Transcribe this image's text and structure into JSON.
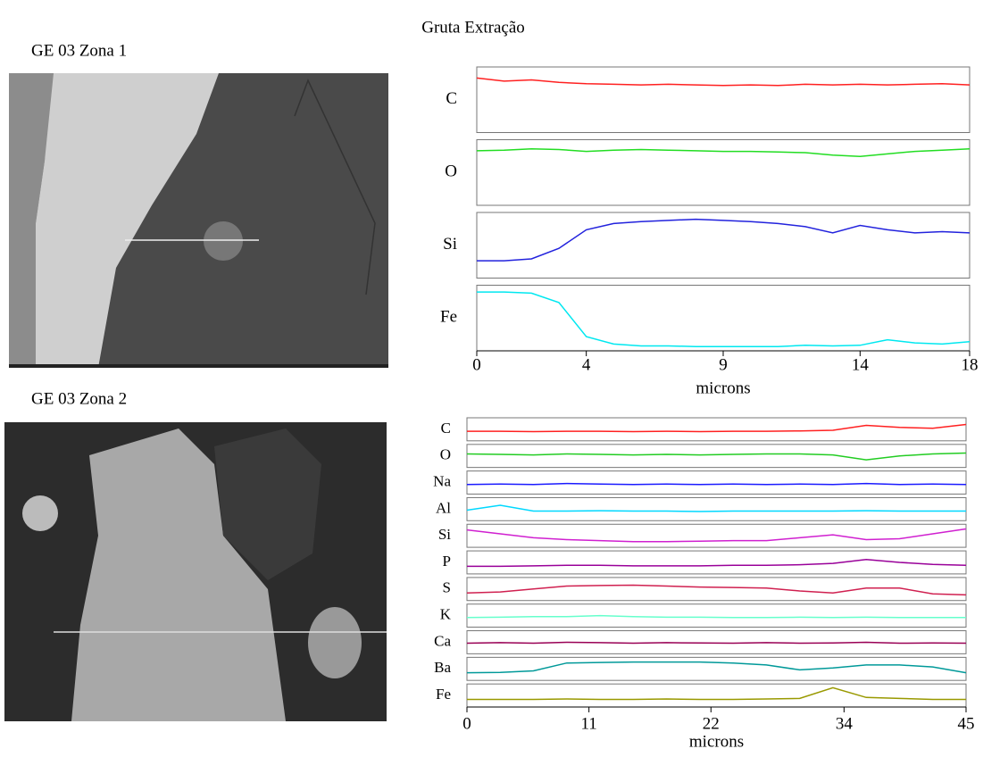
{
  "title": "Gruta Extração",
  "panels": [
    "GE 03 Zona 1",
    "GE  03 Zona 2"
  ],
  "chart_data": [
    {
      "type": "line",
      "xlabel": "microns",
      "x": [
        0,
        1,
        2,
        3,
        4,
        5,
        6,
        7,
        8,
        9,
        10,
        11,
        12,
        13,
        14,
        15,
        16,
        17,
        18
      ],
      "xlim": [
        0,
        18
      ],
      "xticks": [
        0,
        4,
        9,
        14,
        18
      ],
      "ylim": [
        0,
        100
      ],
      "series": [
        {
          "name": "C",
          "color": "#ff2020",
          "values": [
            85,
            80,
            82,
            78,
            76,
            75,
            74,
            75,
            74,
            73,
            74,
            73,
            75,
            74,
            75,
            74,
            75,
            76,
            74
          ]
        },
        {
          "name": "O",
          "color": "#22dd22",
          "values": [
            85,
            86,
            88,
            87,
            84,
            86,
            87,
            86,
            85,
            84,
            84,
            83,
            82,
            78,
            76,
            80,
            84,
            86,
            88
          ]
        },
        {
          "name": "Si",
          "color": "#2222dd",
          "values": [
            25,
            25,
            28,
            45,
            75,
            85,
            88,
            90,
            92,
            90,
            88,
            85,
            80,
            70,
            82,
            75,
            70,
            72,
            70
          ]
        },
        {
          "name": "Fe",
          "color": "#00e8f0",
          "values": [
            92,
            92,
            90,
            75,
            20,
            8,
            5,
            5,
            4,
            4,
            4,
            4,
            6,
            5,
            6,
            15,
            10,
            8,
            12
          ]
        }
      ]
    },
    {
      "type": "line",
      "xlabel": "microns",
      "x": [
        0,
        3,
        6,
        9,
        12,
        15,
        18,
        21,
        24,
        27,
        30,
        33,
        36,
        39,
        42,
        45
      ],
      "xlim": [
        0,
        45
      ],
      "xticks": [
        0,
        11,
        22,
        34,
        45
      ],
      "ylim": [
        0,
        100
      ],
      "series": [
        {
          "name": "C",
          "color": "#ff2020",
          "values": [
            40,
            40,
            38,
            40,
            40,
            38,
            40,
            38,
            40,
            40,
            42,
            45,
            70,
            60,
            55,
            75
          ]
        },
        {
          "name": "O",
          "color": "#22cc22",
          "values": [
            60,
            58,
            55,
            60,
            58,
            55,
            58,
            55,
            58,
            60,
            60,
            55,
            30,
            50,
            60,
            65
          ]
        },
        {
          "name": "Na",
          "color": "#1a1aff",
          "values": [
            40,
            42,
            40,
            45,
            42,
            40,
            42,
            40,
            42,
            40,
            42,
            40,
            45,
            40,
            42,
            40
          ]
        },
        {
          "name": "Al",
          "color": "#00d8ff",
          "values": [
            45,
            70,
            40,
            40,
            42,
            40,
            40,
            38,
            40,
            40,
            40,
            40,
            42,
            40,
            40,
            40
          ]
        },
        {
          "name": "Si",
          "color": "#d020d0",
          "values": [
            80,
            60,
            40,
            30,
            25,
            20,
            20,
            22,
            25,
            25,
            40,
            55,
            30,
            35,
            60,
            85
          ]
        },
        {
          "name": "P",
          "color": "#990099",
          "values": [
            30,
            30,
            32,
            35,
            35,
            32,
            32,
            32,
            35,
            35,
            38,
            45,
            65,
            50,
            40,
            35
          ]
        },
        {
          "name": "S",
          "color": "#d02050",
          "values": [
            30,
            35,
            50,
            65,
            68,
            70,
            65,
            60,
            58,
            55,
            40,
            30,
            55,
            55,
            25,
            20
          ]
        },
        {
          "name": "K",
          "color": "#66ffcc",
          "values": [
            40,
            42,
            45,
            45,
            50,
            45,
            42,
            42,
            40,
            40,
            42,
            40,
            42,
            40,
            40,
            40
          ]
        },
        {
          "name": "Ca",
          "color": "#990055",
          "values": [
            45,
            48,
            45,
            50,
            48,
            45,
            48,
            46,
            45,
            48,
            45,
            46,
            50,
            45,
            46,
            45
          ]
        },
        {
          "name": "Ba",
          "color": "#009999",
          "values": [
            30,
            32,
            40,
            80,
            83,
            85,
            85,
            85,
            80,
            70,
            45,
            55,
            70,
            70,
            60,
            30
          ]
        },
        {
          "name": "Fe",
          "color": "#999900",
          "values": [
            30,
            30,
            30,
            32,
            30,
            30,
            32,
            30,
            30,
            32,
            35,
            90,
            40,
            35,
            30,
            30
          ]
        }
      ]
    }
  ]
}
